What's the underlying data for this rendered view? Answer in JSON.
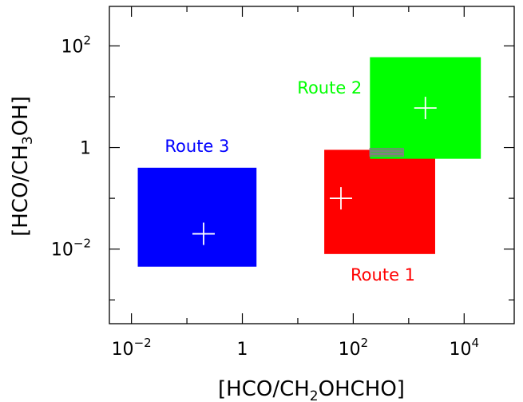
{
  "chart_data": {
    "type": "scatter",
    "xscale": "log",
    "yscale": "log",
    "xlim": [
      0.004,
      80000
    ],
    "ylim": [
      0.00034,
      600
    ],
    "xlabel_pre": "[HCO/CH",
    "xlabel_sub": "2",
    "xlabel_post": "OHCHO]",
    "ylabel_pre": "[HCO/CH",
    "ylabel_sub": "3",
    "ylabel_post": "OH]",
    "xticks": [
      {
        "value": 0.01,
        "base": "10",
        "exp": "−2"
      },
      {
        "value": 1,
        "base": "1",
        "exp": ""
      },
      {
        "value": 100,
        "base": "10",
        "exp": "2"
      },
      {
        "value": 10000,
        "base": "10",
        "exp": "4"
      }
    ],
    "yticks": [
      {
        "value": 0.01,
        "base": "10",
        "exp": "−2"
      },
      {
        "value": 1,
        "base": "1",
        "exp": ""
      },
      {
        "value": 100,
        "base": "10",
        "exp": "2"
      }
    ],
    "grid": false,
    "regions": [
      {
        "name": "Route 1",
        "color": "#ff0000",
        "x": [
          30,
          3000
        ],
        "y": [
          0.008,
          0.9
        ],
        "center": [
          60,
          0.1
        ],
        "label_anchor": "below"
      },
      {
        "name": "Route 2",
        "color": "#00ff00",
        "x": [
          200,
          20000
        ],
        "y": [
          0.6,
          60
        ],
        "center": [
          2000,
          6
        ],
        "label_anchor": "left"
      },
      {
        "name": "Route 3",
        "color": "#0000ff",
        "x": [
          0.013,
          1.8
        ],
        "y": [
          0.0045,
          0.4
        ],
        "center": [
          0.2,
          0.02
        ],
        "label_anchor": "above"
      }
    ],
    "lines": [
      {
        "color": "#808080",
        "y": 0.75,
        "x": [
          200,
          800
        ]
      },
      {
        "color": "#808080",
        "y": 0.85,
        "x": [
          200,
          800
        ]
      }
    ]
  }
}
